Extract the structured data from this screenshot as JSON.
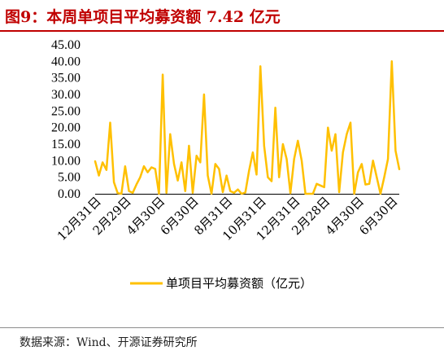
{
  "title": "图9：本周单项目平均募资额 7.42 亿元",
  "source": "数据来源：Wind、开源证券研究所",
  "colors": {
    "title": "#c00000",
    "series": "#ffc000",
    "axis": "#000000"
  },
  "chart_data": {
    "type": "line",
    "title": "图9：本周单项目平均募资额 7.42 亿元",
    "xlabel": "",
    "ylabel": "",
    "ylim": [
      0,
      45
    ],
    "yticks": [
      "0.00",
      "5.00",
      "10.00",
      "15.00",
      "20.00",
      "25.00",
      "30.00",
      "35.00",
      "40.00",
      "45.00"
    ],
    "xtick_labels": [
      "12月31日",
      "2月29日",
      "4月30日",
      "6月30日",
      "8月31日",
      "10月31日",
      "12月31日",
      "2月28日",
      "4月30日",
      "6月30日"
    ],
    "xtick_index": [
      0,
      8,
      17,
      26,
      35,
      44,
      53,
      61,
      70,
      79
    ],
    "grid": false,
    "legend_position": "bottom",
    "series": [
      {
        "name": "单项目平均募资额（亿元）",
        "values": [
          9.8,
          5.5,
          9.5,
          7.2,
          21.5,
          3.5,
          0.2,
          0.0,
          8.3,
          0.8,
          0.3,
          2.8,
          5.0,
          8.3,
          6.5,
          8.0,
          7.5,
          0.0,
          36.0,
          0.3,
          18.0,
          9.0,
          4.0,
          9.5,
          0.8,
          14.5,
          0.3,
          11.5,
          9.5,
          30.0,
          5.5,
          0.0,
          9.0,
          7.5,
          0.5,
          5.5,
          0.8,
          0.3,
          1.3,
          0.0,
          0.4,
          7.0,
          12.5,
          5.8,
          38.5,
          14.5,
          5.0,
          3.8,
          26.0,
          5.0,
          15.0,
          10.5,
          0.2,
          10.5,
          16.0,
          10.0,
          0.0,
          0.0,
          0.0,
          3.0,
          2.5,
          2.0,
          20.0,
          13.0,
          18.0,
          0.5,
          12.5,
          18.0,
          21.5,
          0.0,
          6.5,
          9.0,
          2.8,
          3.0,
          10.0,
          5.0,
          0.0,
          5.0,
          10.5,
          40.0,
          13.0,
          7.42
        ]
      }
    ]
  }
}
